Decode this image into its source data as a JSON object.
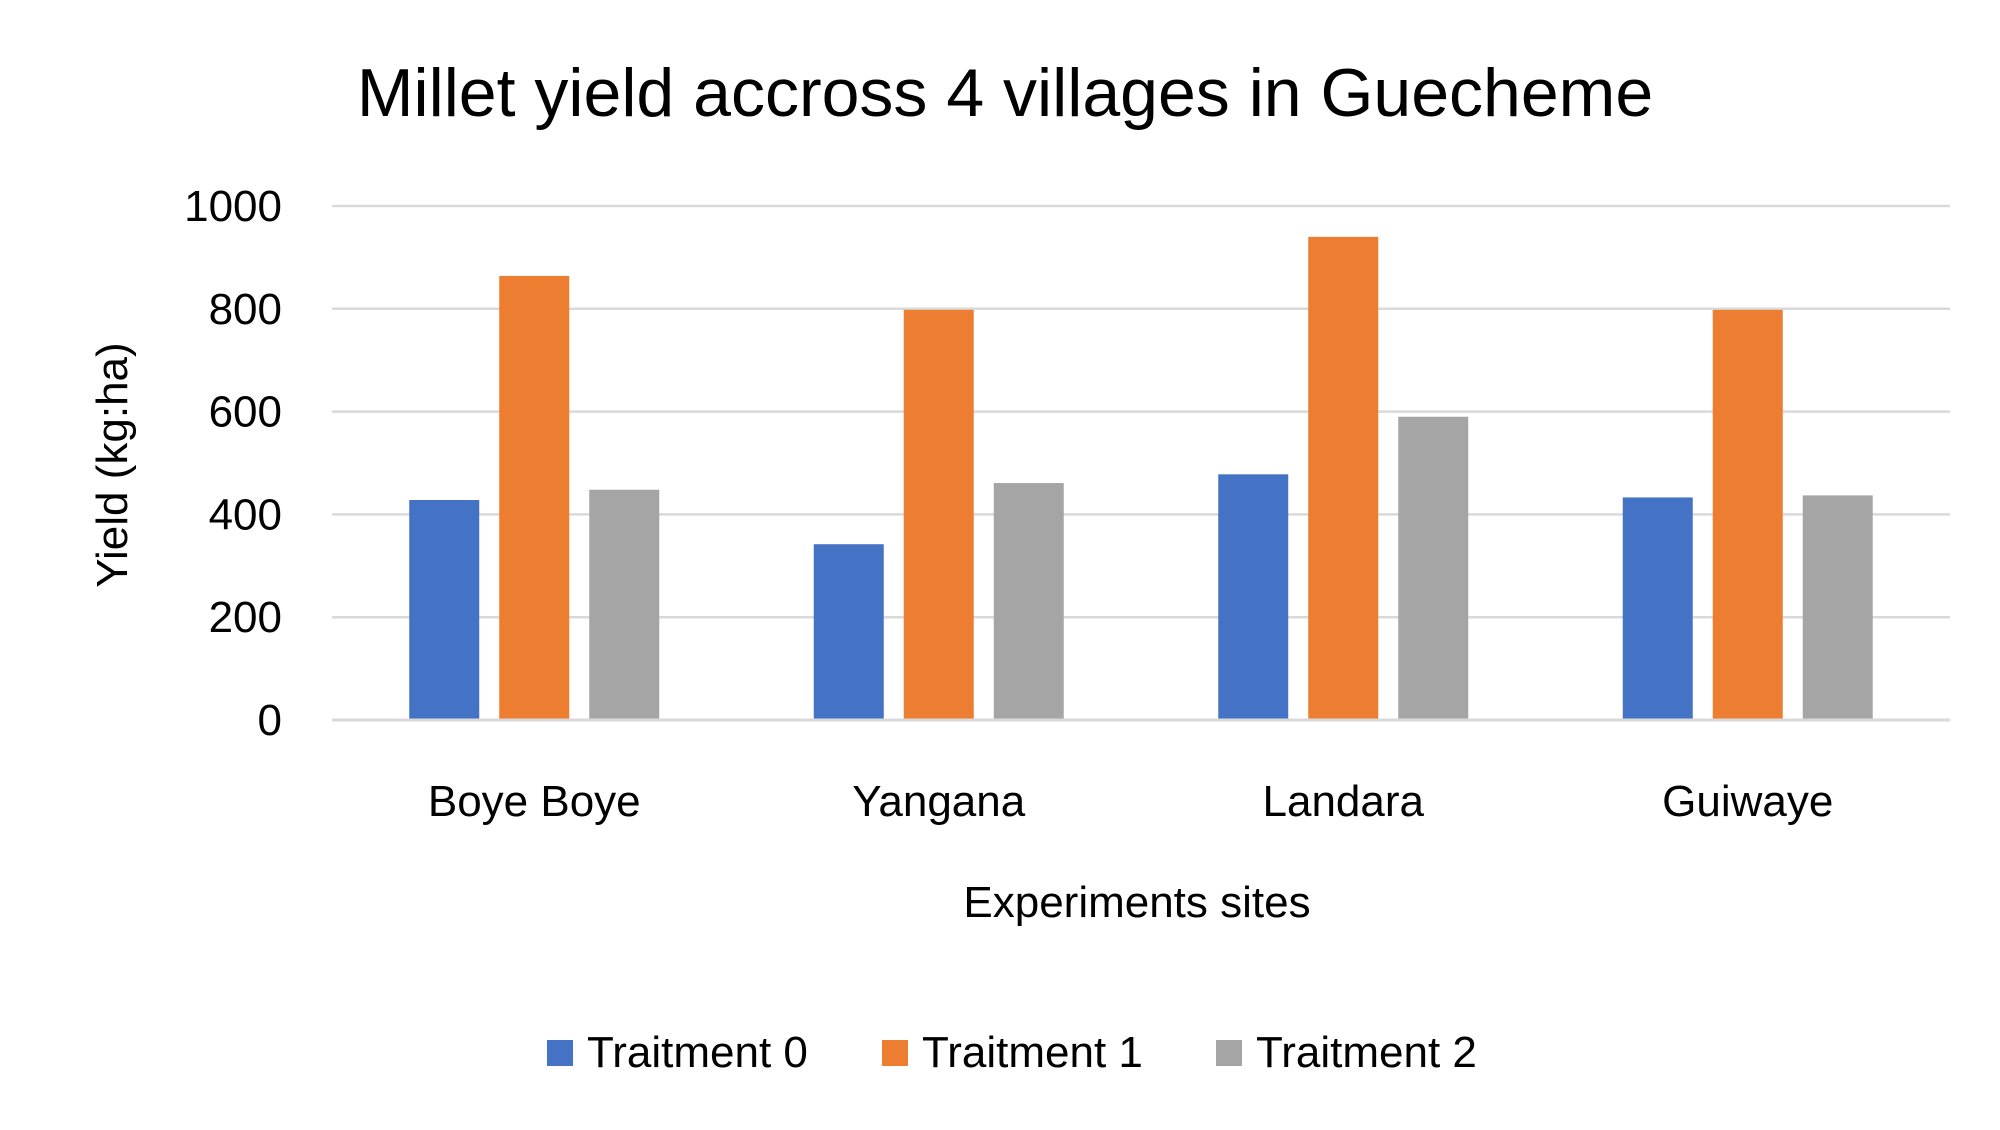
{
  "chart_data": {
    "type": "bar",
    "title": "Millet yield accross 4 villages in Guecheme",
    "xlabel": "Experiments sites",
    "ylabel": "Yield (kg:ha)",
    "ylim": [
      0,
      1000
    ],
    "yticks": [
      0,
      200,
      400,
      600,
      800,
      1000
    ],
    "grid": true,
    "legend_position": "bottom",
    "categories": [
      "Boye Boye",
      "Yangana",
      "Landara",
      "Guiwaye"
    ],
    "series": [
      {
        "name": "Traitment 0",
        "color": "#4472C4",
        "values": [
          428,
          342,
          478,
          433
        ]
      },
      {
        "name": "Traitment 1",
        "color": "#ED7D31",
        "values": [
          864,
          798,
          940,
          798
        ]
      },
      {
        "name": "Traitment 2",
        "color": "#A5A5A5",
        "values": [
          448,
          461,
          590,
          437
        ]
      }
    ]
  }
}
